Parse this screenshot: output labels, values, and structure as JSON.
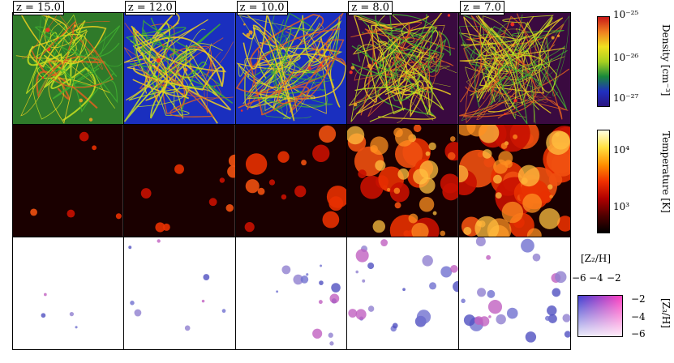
{
  "columns": [
    {
      "redshift": "z = 15.0"
    },
    {
      "redshift": "z = 12.0"
    },
    {
      "redshift": "z = 10.0"
    },
    {
      "redshift": "z = 8.0"
    },
    {
      "redshift": "z = 7.0"
    }
  ],
  "colorbars": {
    "density": {
      "label": "Density [cm⁻³]",
      "ticks": [
        "10⁻²⁵",
        "10⁻²⁶",
        "10⁻²⁷"
      ],
      "colors": [
        "#2a1580",
        "#2030c0",
        "#1a8a3a",
        "#a8d020",
        "#f0e020",
        "#f08020",
        "#c81818"
      ]
    },
    "temperature": {
      "label": "Temperature [K]",
      "ticks": [
        "10⁴",
        "10³"
      ],
      "colors": [
        "#000000",
        "#500000",
        "#b00000",
        "#f03000",
        "#ff9000",
        "#ffe040",
        "#ffffe0"
      ]
    },
    "metallicity": {
      "xlabel": "[Z₂/H]",
      "xticks": [
        "−6",
        "−4",
        "−2"
      ],
      "ylabel": "[Z₃/H]",
      "yticks": [
        "−2",
        "−4",
        "−6"
      ],
      "colors": {
        "corner_tl": "#4040d0",
        "corner_tr": "#ff40c0",
        "corner_bl": "#ffffff",
        "corner_br": "#c040c0"
      }
    }
  },
  "row_colors": {
    "density_bg": [
      "#2f7a2a",
      "#1a2fbf",
      "#1a2fbf",
      "#3a0a40",
      "#3a0a40"
    ],
    "temperature_bg": "#1a0000",
    "metal_bg": "#ffffff"
  }
}
